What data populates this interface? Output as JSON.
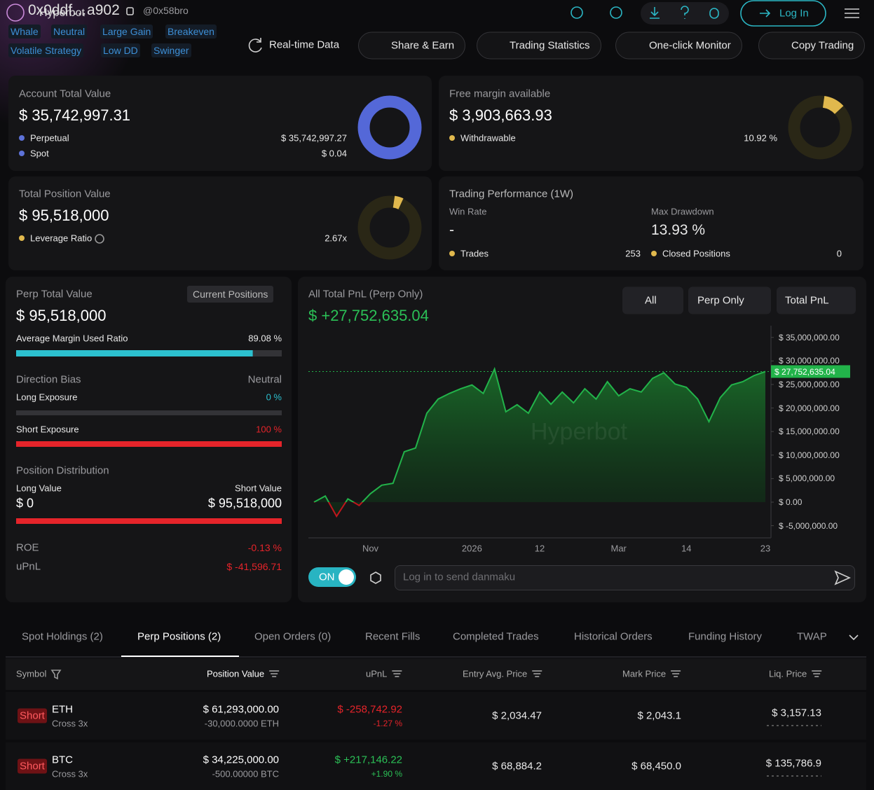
{
  "header": {
    "logo": "Hyperbot",
    "address": "0x0ddf…a902",
    "handle": "@0x58bro",
    "tags": [
      "Whale",
      "Neutral",
      "Large Gain",
      "Breakeven",
      "Volatile Strategy",
      "Low DD",
      "Swinger"
    ],
    "login": "Log In",
    "actions": [
      "Real-time Data",
      "Share & Earn",
      "Trading Statistics",
      "One-click Monitor",
      "Copy Trading"
    ]
  },
  "account": {
    "title": "Account Total Value",
    "value": "$ 35,742,997.31",
    "items": [
      {
        "label": "Perpetual",
        "value": "$ 35,742,997.27"
      },
      {
        "label": "Spot",
        "value": "$ 0.04"
      }
    ]
  },
  "margin": {
    "title": "Free margin available",
    "value": "$ 3,903,663.93",
    "label": "Withdrawable",
    "percent": 10.92,
    "percent_label": "10.92 %"
  },
  "position": {
    "title": "Total Position Value",
    "value": "$ 95,518,000",
    "label": "Leverage Ratio",
    "ratio": "2.67x"
  },
  "performance": {
    "title": "Trading Performance (1W)",
    "win_rate_label": "Win Rate",
    "win_rate": "-",
    "max_drawdown_label": "Max Drawdown",
    "max_drawdown": "13.93 %",
    "trades_label": "Trades",
    "trades": "253",
    "closed_label": "Closed Positions",
    "closed": "0"
  },
  "perp": {
    "title": "Perp Total Value",
    "button": "Current Positions",
    "value": "$ 95,518,000",
    "margin_label": "Average Margin Used Ratio",
    "margin_ratio": 89.08,
    "margin_ratio_label": "89.08 %",
    "direction_title": "Direction Bias",
    "direction": "Neutral",
    "long_label": "Long Exposure",
    "long_pct": 0,
    "long_pct_label": "0 %",
    "short_label": "Short Exposure",
    "short_pct": 100,
    "short_pct_label": "100 %",
    "dist_title": "Position Distribution",
    "long_value_label": "Long Value",
    "long_value": "$ 0",
    "short_value_label": "Short Value",
    "short_value": "$ 95,518,000",
    "roe_label": "ROE",
    "roe": "-0.13 %",
    "upnl_label": "uPnL",
    "upnl": "$ -41,596.71"
  },
  "chart_data": {
    "type": "area",
    "title": "All Total PnL (Perp Only)",
    "value": "$ +27,752,635.04",
    "filters": [
      "All",
      "Perp Only",
      "Total PnL"
    ],
    "watermark": "Hyperbot",
    "categories": [
      null,
      null,
      null,
      null,
      null,
      "Nov",
      null,
      null,
      null,
      null,
      null,
      null,
      null,
      null,
      "2026",
      null,
      null,
      null,
      null,
      null,
      "12",
      null,
      null,
      null,
      null,
      null,
      null,
      "Mar",
      null,
      null,
      null,
      null,
      null,
      "14",
      null,
      null,
      null,
      null,
      null,
      null,
      "23"
    ],
    "values": [
      0,
      1300000,
      -3000000,
      700000,
      -700000,
      1800000,
      3600000,
      4000000,
      10700000,
      11500000,
      18900000,
      21900000,
      23100000,
      24100000,
      24900000,
      23100000,
      28300000,
      19200000,
      20700000,
      18900000,
      23400000,
      20800000,
      23400000,
      21100000,
      24100000,
      21900000,
      25600000,
      22600000,
      24100000,
      23400000,
      26300000,
      27500000,
      25100000,
      24400000,
      21900000,
      17100000,
      22200000,
      24900000,
      25600000,
      26900000,
      27752635.04
    ],
    "last_value_label": "$ 27,752,635.04",
    "color": "#22b34a",
    "negative_color": "#c0151c",
    "ylim": [
      -7590000,
      37500000
    ],
    "yticks": [
      {
        "value": 35000000,
        "label": "$ 35,000,000.00"
      },
      {
        "value": 30000000,
        "label": "$ 30,000,000.00"
      },
      {
        "value": 25000000,
        "label": "$ 25,000,000.00"
      },
      {
        "value": 20000000,
        "label": "$ 20,000,000.00"
      },
      {
        "value": 15000000,
        "label": "$ 15,000,000.00"
      },
      {
        "value": 10000000,
        "label": "$ 10,000,000.00"
      },
      {
        "value": 5000000,
        "label": "$ 5,000,000.00"
      },
      {
        "value": 0,
        "label": "$ 0.00"
      },
      {
        "value": -5000000,
        "label": "$ -5,000,000.00"
      }
    ]
  },
  "danmaku": {
    "toggle": "ON",
    "placeholder": "Log in to send danmaku"
  },
  "tabs": {
    "items": [
      "Spot Holdings (2)",
      "Perp Positions (2)",
      "Open Orders (0)",
      "Recent Fills",
      "Completed Trades",
      "Historical Orders",
      "Funding History",
      "TWAP"
    ]
  },
  "table": {
    "columns": [
      "Symbol",
      "Position Value",
      "uPnL",
      "Entry Avg. Price",
      "Mark Price",
      "Liq. Price"
    ],
    "rows": [
      {
        "side": "Short",
        "symbol": "ETH",
        "mode": "Cross 3x",
        "value": "$ 61,293,000.00",
        "size": "-30,000.0000 ETH",
        "upnl": "$ -258,742.92",
        "upnl_pct": "-1.27 %",
        "entry": "$ 2,034.47",
        "mark": "$ 2,043.1",
        "liq": "$ 3,157.13"
      },
      {
        "side": "Short",
        "symbol": "BTC",
        "mode": "Cross 3x",
        "value": "$ 34,225,000.00",
        "size": "-500.00000 BTC",
        "upnl": "$ +217,146.22",
        "upnl_pct": "+1.90 %",
        "entry": "$ 68,884.2",
        "mark": "$ 68,450.0",
        "liq": "$ 135,786.9"
      }
    ]
  }
}
